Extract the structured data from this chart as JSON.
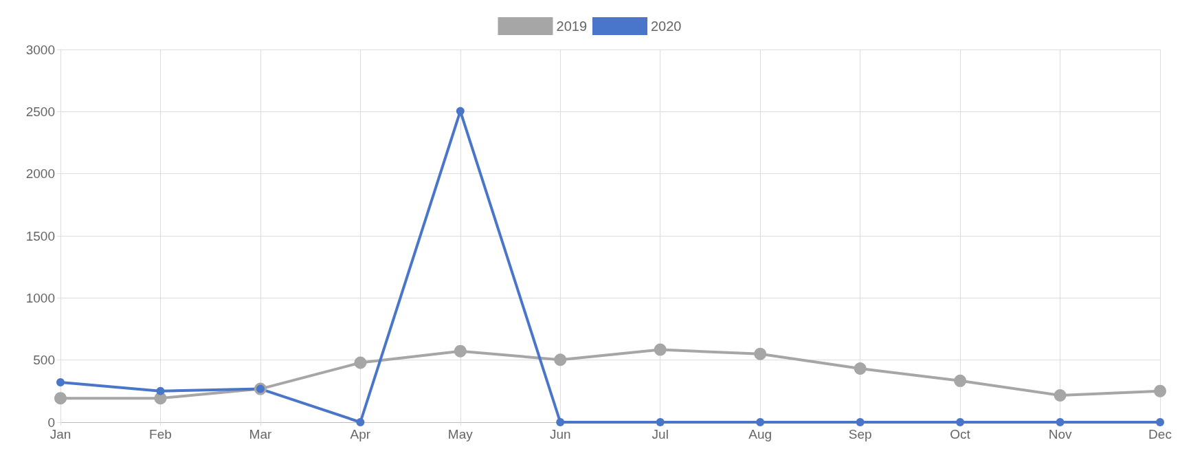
{
  "chart_data": {
    "type": "line",
    "categories": [
      "Jan",
      "Feb",
      "Mar",
      "Apr",
      "May",
      "Jun",
      "Jul",
      "Aug",
      "Sep",
      "Oct",
      "Nov",
      "Dec"
    ],
    "series": [
      {
        "name": "2019",
        "color": "#a6a6a6",
        "values": [
          193,
          193,
          268,
          479,
          572,
          502,
          584,
          549,
          432,
          333,
          216,
          251
        ]
      },
      {
        "name": "2020",
        "color": "#4a76c9",
        "values": [
          321,
          251,
          268,
          0,
          2504,
          0,
          0,
          0,
          0,
          0,
          0,
          0
        ]
      }
    ],
    "ylim": [
      0,
      3000
    ],
    "yticks": [
      0,
      500,
      1000,
      1500,
      2000,
      2500,
      3000
    ],
    "grid": true,
    "legend": "top",
    "marker": "circle",
    "line_style": "solid"
  }
}
